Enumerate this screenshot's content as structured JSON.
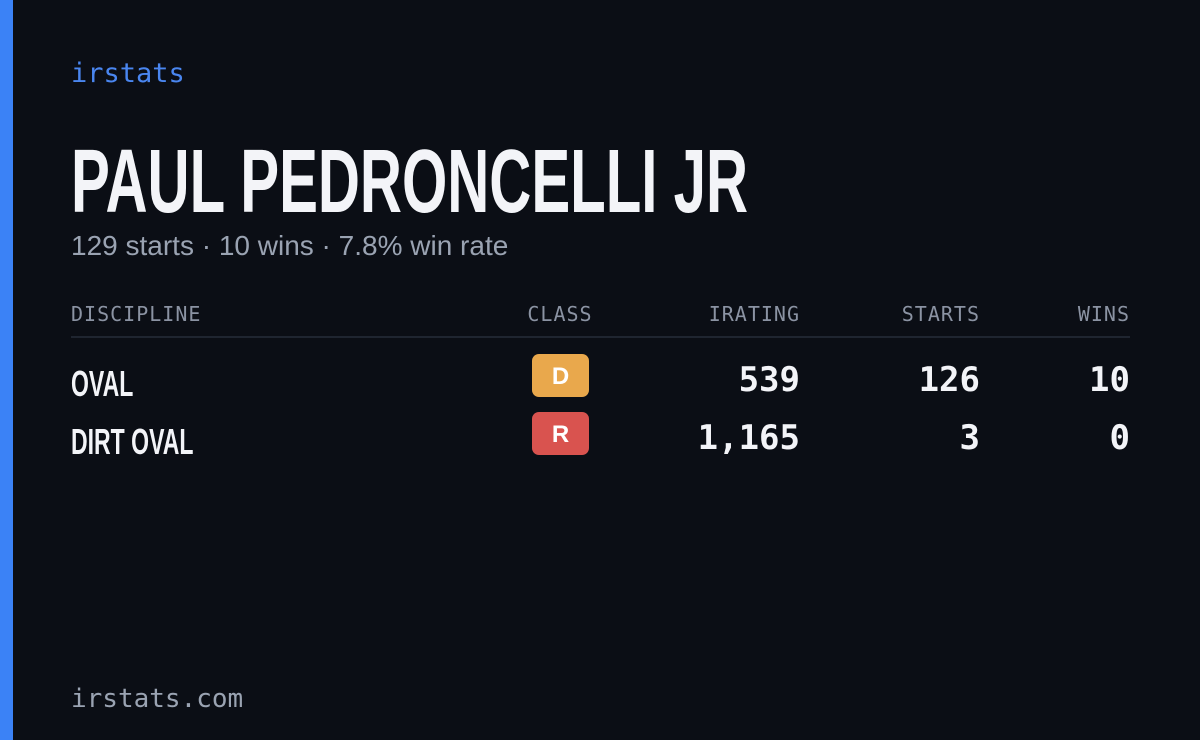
{
  "brand": "irstats",
  "driver": {
    "name": "PAUL PEDRONCELLI JR",
    "summary": "129 starts · 10 wins · 7.8% win rate"
  },
  "table": {
    "headers": [
      "DISCIPLINE",
      "CLASS",
      "IRATING",
      "STARTS",
      "WINS"
    ],
    "rows": [
      {
        "discipline": "OVAL",
        "class": "D",
        "class_color": "#e9a84c",
        "irating": "539",
        "starts": "126",
        "wins": "10"
      },
      {
        "discipline": "DIRT OVAL",
        "class": "R",
        "class_color": "#d9534f",
        "irating": "1,165",
        "starts": "3",
        "wins": "0"
      }
    ]
  },
  "footer": "irstats.com"
}
